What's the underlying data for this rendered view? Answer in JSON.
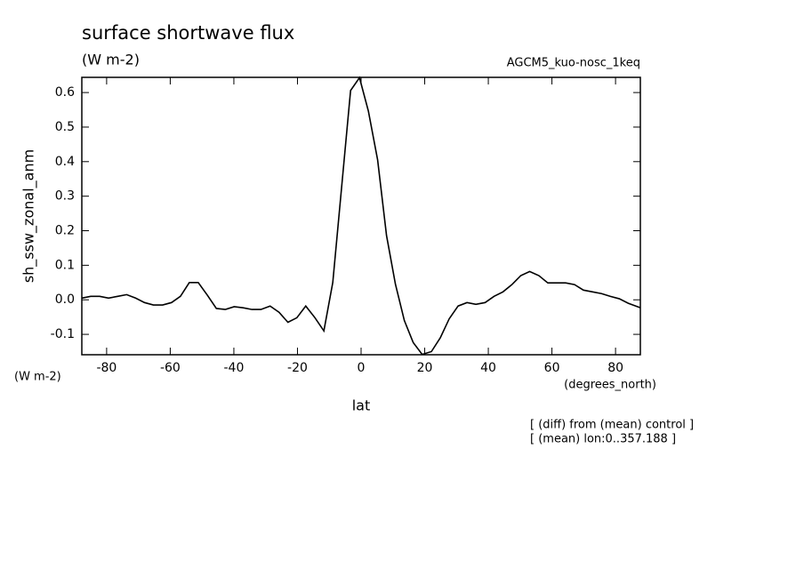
{
  "chart_data": {
    "type": "line",
    "title": "surface shortwave flux",
    "subtitle": "(W m-2)",
    "experiment": "AGCM5_kuo-nosc_1keq",
    "y_label": "sh_ssw_zonal_anm",
    "y_units": "(W m-2)",
    "x_label": "lat",
    "x_units": "(degrees_north)",
    "notes": [
      "[ (diff) from (mean) control ]",
      "[ (mean) lon:0..357.188 ]"
    ],
    "xlim": [
      -87.8,
      87.8
    ],
    "ylim": [
      -0.159,
      0.644
    ],
    "xticks": [
      -80,
      -60,
      -40,
      -20,
      0,
      20,
      40,
      60,
      80
    ],
    "yticks": [
      -0.1,
      {
        "value": 0,
        "label": "0.0"
      },
      0.1,
      0.2,
      0.3,
      0.4,
      0.5,
      0.6
    ],
    "grid": false,
    "series": [
      {
        "color": "#000000",
        "x": [
          -87.8,
          -85,
          -82.2,
          -79.4,
          -76.5,
          -73.7,
          -70.9,
          -68.1,
          -65.3,
          -62.4,
          -59.6,
          -56.8,
          -54.0,
          -51.2,
          -48.3,
          -45.5,
          -42.7,
          -39.9,
          -37.1,
          -34.3,
          -31.5,
          -28.6,
          -25.8,
          -23.0,
          -20.2,
          -17.4,
          -14.5,
          -11.7,
          -8.9,
          -6.1,
          -3.3,
          -0.5,
          2.3,
          5.2,
          8.0,
          10.8,
          13.6,
          16.4,
          19.2,
          22.1,
          24.9,
          27.7,
          30.5,
          33.3,
          36.1,
          39.0,
          41.8,
          44.6,
          47.4,
          50.2,
          53.0,
          55.9,
          58.7,
          61.5,
          64.3,
          67.1,
          69.9,
          72.8,
          75.6,
          78.4,
          81.2,
          84.0,
          87.8
        ],
        "values": [
          0.005,
          0.01,
          0.01,
          0.005,
          0.01,
          0.015,
          0.005,
          -0.008,
          -0.015,
          -0.015,
          -0.008,
          0.01,
          0.05,
          0.05,
          0.013,
          -0.025,
          -0.028,
          -0.02,
          -0.023,
          -0.028,
          -0.028,
          -0.018,
          -0.036,
          -0.065,
          -0.052,
          -0.018,
          -0.052,
          -0.09,
          0.05,
          0.328,
          0.606,
          0.643,
          0.546,
          0.405,
          0.186,
          0.045,
          -0.06,
          -0.124,
          -0.158,
          -0.15,
          -0.11,
          -0.055,
          -0.018,
          -0.008,
          -0.013,
          -0.008,
          0.01,
          0.023,
          0.044,
          0.07,
          0.082,
          0.07,
          0.049,
          0.049,
          0.049,
          0.044,
          0.028,
          0.023,
          0.018,
          0.01,
          0.003,
          -0.01,
          -0.023
        ]
      }
    ]
  }
}
